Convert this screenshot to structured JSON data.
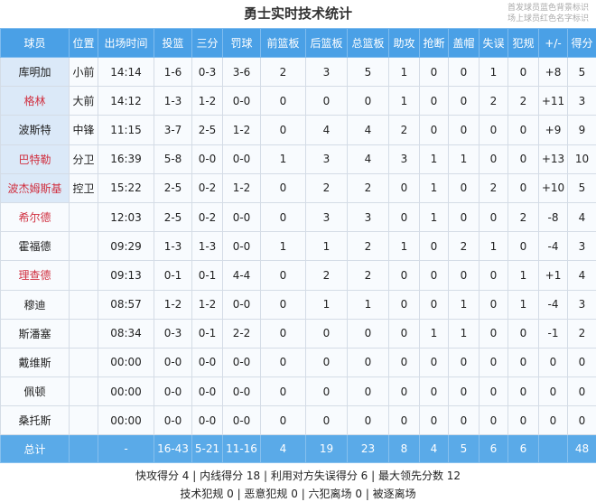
{
  "title": "勇士实时技术统计",
  "note": [
    "首发球员蓝色背景标识",
    "场上球员红色名字标识"
  ],
  "columns": [
    "球员",
    "位置",
    "出场时间",
    "投篮",
    "三分",
    "罚球",
    "前篮板",
    "后篮板",
    "总篮板",
    "助攻",
    "抢断",
    "盖帽",
    "失误",
    "犯规",
    "+/-",
    "得分"
  ],
  "rows": [
    {
      "name": "库明加",
      "starter": true,
      "on_court": false,
      "cells": [
        "小前",
        "14:14",
        "1-6",
        "0-3",
        "3-6",
        "2",
        "3",
        "5",
        "1",
        "0",
        "0",
        "1",
        "0",
        "+8",
        "5"
      ]
    },
    {
      "name": "格林",
      "starter": true,
      "on_court": true,
      "cells": [
        "大前",
        "14:12",
        "1-3",
        "1-2",
        "0-0",
        "0",
        "0",
        "0",
        "1",
        "0",
        "0",
        "2",
        "2",
        "+11",
        "3"
      ]
    },
    {
      "name": "波斯特",
      "starter": true,
      "on_court": false,
      "cells": [
        "中锋",
        "11:15",
        "3-7",
        "2-5",
        "1-2",
        "0",
        "4",
        "4",
        "2",
        "0",
        "0",
        "0",
        "0",
        "+9",
        "9"
      ]
    },
    {
      "name": "巴特勒",
      "starter": true,
      "on_court": true,
      "cells": [
        "分卫",
        "16:39",
        "5-8",
        "0-0",
        "0-0",
        "1",
        "3",
        "4",
        "3",
        "1",
        "1",
        "0",
        "0",
        "+13",
        "10"
      ]
    },
    {
      "name": "波杰姆斯基",
      "starter": true,
      "on_court": true,
      "cells": [
        "控卫",
        "15:22",
        "2-5",
        "0-2",
        "1-2",
        "0",
        "2",
        "2",
        "0",
        "1",
        "0",
        "2",
        "0",
        "+10",
        "5"
      ]
    },
    {
      "name": "希尔德",
      "starter": false,
      "on_court": true,
      "cells": [
        "",
        "12:03",
        "2-5",
        "0-2",
        "0-0",
        "0",
        "3",
        "3",
        "0",
        "1",
        "0",
        "0",
        "2",
        "-8",
        "4"
      ]
    },
    {
      "name": "霍福德",
      "starter": false,
      "on_court": false,
      "cells": [
        "",
        "09:29",
        "1-3",
        "1-3",
        "0-0",
        "1",
        "1",
        "2",
        "1",
        "0",
        "2",
        "1",
        "0",
        "-4",
        "3"
      ]
    },
    {
      "name": "理查德",
      "starter": false,
      "on_court": true,
      "cells": [
        "",
        "09:13",
        "0-1",
        "0-1",
        "4-4",
        "0",
        "2",
        "2",
        "0",
        "0",
        "0",
        "0",
        "1",
        "+1",
        "4"
      ]
    },
    {
      "name": "穆迪",
      "starter": false,
      "on_court": false,
      "cells": [
        "",
        "08:57",
        "1-2",
        "1-2",
        "0-0",
        "0",
        "1",
        "1",
        "0",
        "0",
        "1",
        "0",
        "1",
        "-4",
        "3"
      ]
    },
    {
      "name": "斯潘塞",
      "starter": false,
      "on_court": false,
      "cells": [
        "",
        "08:34",
        "0-3",
        "0-1",
        "2-2",
        "0",
        "0",
        "0",
        "0",
        "1",
        "1",
        "0",
        "0",
        "-1",
        "2"
      ]
    },
    {
      "name": "戴维斯",
      "starter": false,
      "on_court": false,
      "cells": [
        "",
        "00:00",
        "0-0",
        "0-0",
        "0-0",
        "0",
        "0",
        "0",
        "0",
        "0",
        "0",
        "0",
        "0",
        "0",
        "0"
      ]
    },
    {
      "name": "佩顿",
      "starter": false,
      "on_court": false,
      "cells": [
        "",
        "00:00",
        "0-0",
        "0-0",
        "0-0",
        "0",
        "0",
        "0",
        "0",
        "0",
        "0",
        "0",
        "0",
        "0",
        "0"
      ]
    },
    {
      "name": "桑托斯",
      "starter": false,
      "on_court": false,
      "cells": [
        "",
        "00:00",
        "0-0",
        "0-0",
        "0-0",
        "0",
        "0",
        "0",
        "0",
        "0",
        "0",
        "0",
        "0",
        "0",
        "0"
      ]
    }
  ],
  "total": {
    "name": "总计",
    "cells": [
      "",
      "-",
      "16-43",
      "5-21",
      "11-16",
      "4",
      "19",
      "23",
      "8",
      "4",
      "5",
      "6",
      "6",
      "",
      "48"
    ]
  },
  "footer": [
    "快攻得分 4 | 内线得分 18 | 利用对方失误得分 6 | 最大领先分数 12",
    "技术犯规 0 | 恶意犯规 0 | 六犯离场 0 | 被逐离场"
  ],
  "colors": {
    "header": "#4aa0e6",
    "starter_bg": "#dbe9f8",
    "on_court_name": "#d03040"
  }
}
